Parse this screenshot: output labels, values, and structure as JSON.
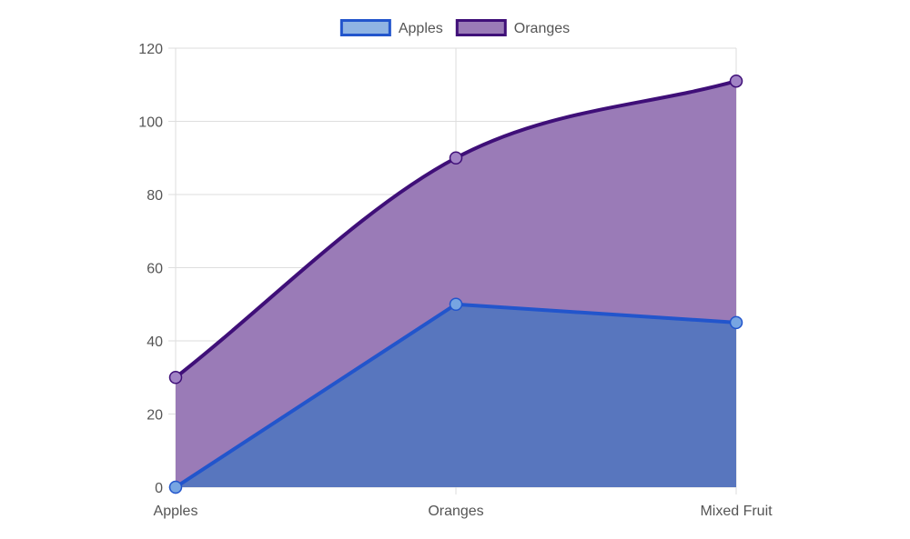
{
  "chart_data": {
    "type": "area",
    "stacked": true,
    "categories": [
      "Apples",
      "Oranges",
      "Mixed Fruit"
    ],
    "series": [
      {
        "name": "Apples",
        "values": [
          0,
          50,
          45
        ],
        "stroke": "#2255CC",
        "legend_fill": "#8FB4E3",
        "area_fill": "#5876BE",
        "point_fill": "#77A5E2"
      },
      {
        "name": "Oranges",
        "values": [
          30,
          40,
          66
        ],
        "stroke": "#3F0F78",
        "legend_fill": "#9A7BB7",
        "area_fill": "#9A7BB7",
        "point_fill": "#A183C5"
      }
    ],
    "ylim": [
      0,
      120
    ],
    "yticks": [
      0,
      20,
      40,
      60,
      80,
      100,
      120
    ],
    "grid": true,
    "legend_position": "top",
    "title": "",
    "xlabel": "",
    "ylabel": ""
  }
}
